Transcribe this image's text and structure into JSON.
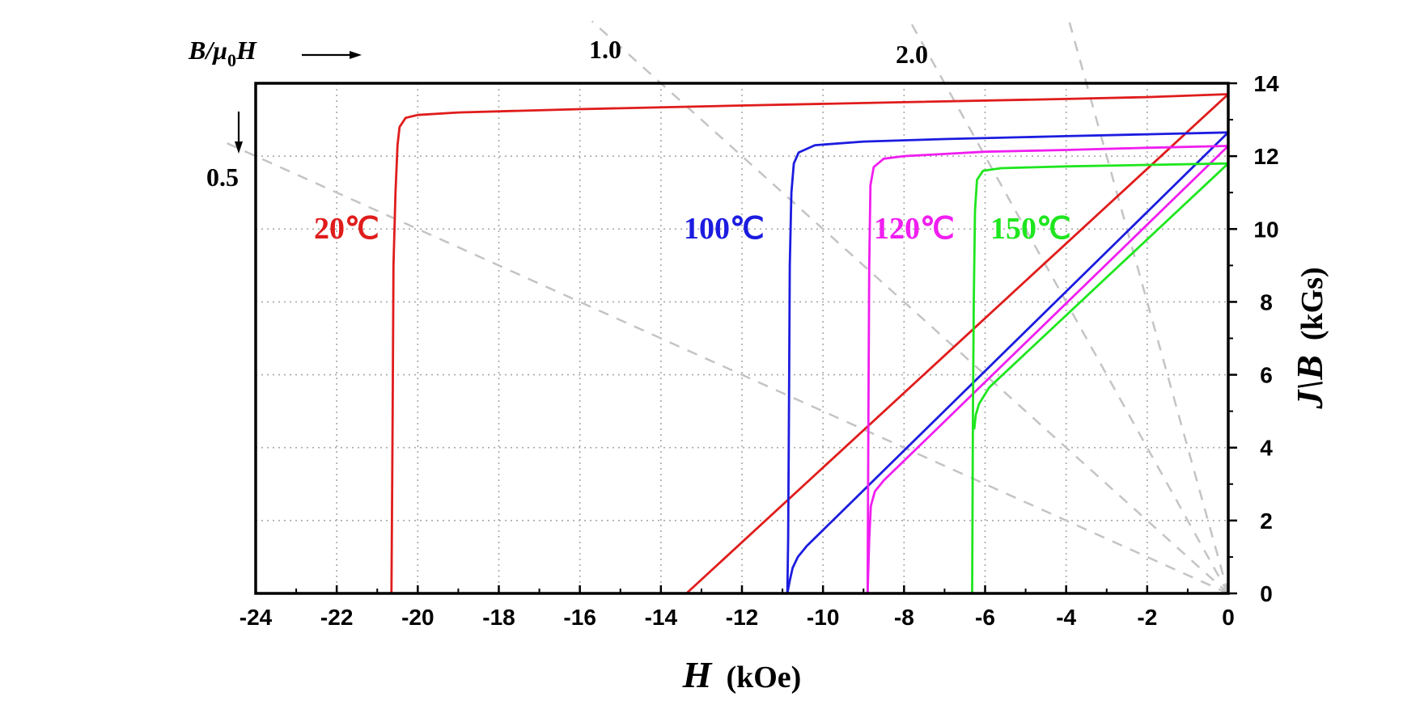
{
  "chart_data": {
    "type": "line",
    "title": "",
    "xlabel": {
      "symbol": "H",
      "unit": "(kOe)"
    },
    "ylabel": {
      "symbol": "J\\B",
      "unit": "(kGs)"
    },
    "xlim": [
      -24,
      0
    ],
    "ylim": [
      0,
      14
    ],
    "x_ticks": [
      -24,
      -22,
      -20,
      -18,
      -16,
      -14,
      -12,
      -10,
      -8,
      -6,
      -4,
      -2,
      0
    ],
    "x_tick_labels": [
      "-24",
      "-22",
      "-20",
      "-18",
      "-16",
      "-14",
      "-12",
      "-10",
      "-8",
      "-6",
      "-4",
      "-2",
      "0"
    ],
    "y_ticks": [
      0,
      2,
      4,
      6,
      8,
      10,
      12,
      14
    ],
    "y_tick_labels": [
      "0",
      "2",
      "4",
      "6",
      "8",
      "10",
      "12",
      "14"
    ],
    "grid": true,
    "permeance": {
      "header": {
        "symbol": "B/μ",
        "subscript": "0",
        "suffix": "H"
      },
      "lines": [
        {
          "label": "0.5",
          "ratio": 0.5
        },
        {
          "label": "1.0",
          "ratio": 1.0
        },
        {
          "label": "2.0",
          "ratio": 2.0
        },
        {
          "label": "",
          "ratio": 4.0
        }
      ]
    },
    "series": [
      {
        "name": "20℃",
        "color": "#e01c1c",
        "demag_J": [
          [
            0,
            13.7
          ],
          [
            -2,
            13.62
          ],
          [
            -4,
            13.57
          ],
          [
            -8,
            13.48
          ],
          [
            -12,
            13.39
          ],
          [
            -16,
            13.29
          ],
          [
            -19,
            13.2
          ],
          [
            -20,
            13.13
          ],
          [
            -20.3,
            13.05
          ],
          [
            -20.45,
            12.8
          ],
          [
            -20.5,
            12.3
          ],
          [
            -20.55,
            11
          ],
          [
            -20.6,
            9
          ],
          [
            -20.62,
            5
          ],
          [
            -20.65,
            0
          ]
        ],
        "intrinsic_B": [
          [
            0,
            13.7
          ],
          [
            -13.37,
            0
          ]
        ]
      },
      {
        "name": "100℃",
        "color": "#1c1ce0",
        "demag_J": [
          [
            0,
            12.65
          ],
          [
            -2,
            12.6
          ],
          [
            -4,
            12.55
          ],
          [
            -7,
            12.47
          ],
          [
            -9,
            12.4
          ],
          [
            -10.2,
            12.3
          ],
          [
            -10.6,
            12.1
          ],
          [
            -10.72,
            11.8
          ],
          [
            -10.78,
            11
          ],
          [
            -10.82,
            9
          ],
          [
            -10.84,
            5
          ],
          [
            -10.86,
            1.5
          ],
          [
            -10.88,
            0
          ]
        ],
        "intrinsic_B": [
          [
            0,
            12.65
          ],
          [
            -10.4,
            1.3
          ],
          [
            -10.62,
            1.0
          ],
          [
            -10.75,
            0.7
          ],
          [
            -10.82,
            0.35
          ],
          [
            -10.88,
            0
          ]
        ]
      },
      {
        "name": "120℃",
        "color": "#f01ef0",
        "demag_J": [
          [
            0,
            12.28
          ],
          [
            -2,
            12.23
          ],
          [
            -4,
            12.17
          ],
          [
            -6,
            12.12
          ],
          [
            -8,
            12.0
          ],
          [
            -8.5,
            11.93
          ],
          [
            -8.75,
            11.7
          ],
          [
            -8.83,
            11.2
          ],
          [
            -8.86,
            9
          ],
          [
            -8.88,
            5
          ],
          [
            -8.9,
            0
          ]
        ],
        "intrinsic_B": [
          [
            0,
            12.28
          ],
          [
            -8.5,
            3.1
          ],
          [
            -8.72,
            2.8
          ],
          [
            -8.82,
            2.4
          ],
          [
            -8.86,
            1.5
          ],
          [
            -8.9,
            0
          ]
        ]
      },
      {
        "name": "150℃",
        "color": "#1ee61e",
        "demag_J": [
          [
            0,
            11.8
          ],
          [
            -2,
            11.76
          ],
          [
            -4,
            11.72
          ],
          [
            -5.6,
            11.67
          ],
          [
            -6.05,
            11.6
          ],
          [
            -6.2,
            11.35
          ],
          [
            -6.25,
            10.5
          ],
          [
            -6.28,
            8
          ],
          [
            -6.3,
            5
          ],
          [
            -6.32,
            0
          ]
        ],
        "intrinsic_B": [
          [
            0,
            11.8
          ],
          [
            -5.9,
            5.65
          ],
          [
            -6.15,
            5.2
          ],
          [
            -6.23,
            4.9
          ],
          [
            -6.27,
            4.5
          ]
        ]
      }
    ]
  },
  "labels": {
    "temp_20": "20℃",
    "temp_100": "100℃",
    "temp_120": "120℃",
    "temp_150": "150℃"
  }
}
